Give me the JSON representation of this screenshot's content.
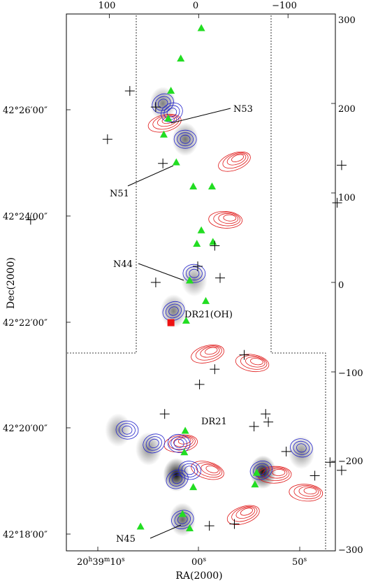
{
  "chart_data": {
    "type": "scatter",
    "title": "",
    "xlabel": "RA(2000)",
    "ylabel": "Dec(2000)",
    "x_ticks_bottom": [
      {
        "label_main": "20",
        "sup1": "h",
        "mid": "39",
        "sup2": "m",
        "tail": "10",
        "sup3": "s"
      },
      {
        "label_main": "00",
        "sup1": "s"
      },
      {
        "label_main": "50",
        "sup1": "s"
      }
    ],
    "y_ticks_left": [
      "42°26′00″",
      "42°24′00″",
      "42°22′00″",
      "42°20′00″",
      "42°18′00″"
    ],
    "x_ticks_top": [
      "100",
      "0",
      "−100"
    ],
    "y_ticks_right": [
      "300",
      "200",
      "100",
      "0",
      "−100",
      "−200",
      "−300"
    ],
    "offset_xlim": [
      148,
      -153
    ],
    "offset_ylim": [
      -300,
      300
    ],
    "source_labels": [
      {
        "label": "N53",
        "x": 0
      },
      {
        "label": "N51",
        "x": 0
      },
      {
        "label": "N44",
        "x": 0
      },
      {
        "label": "DR21(OH)",
        "x": 0
      },
      {
        "label": "DR21",
        "x": 0
      },
      {
        "label": "N45",
        "x": 0
      }
    ],
    "series": [
      {
        "name": "triangles",
        "marker": "triangle",
        "color": "#22dd22",
        "points": [
          {
            "x": -3,
            "y": 284
          },
          {
            "x": 20,
            "y": 250
          },
          {
            "x": 31,
            "y": 214
          },
          {
            "x": 34,
            "y": 183
          },
          {
            "x": 39,
            "y": 165
          },
          {
            "x": 25,
            "y": 134
          },
          {
            "x": 6,
            "y": 107
          },
          {
            "x": -15,
            "y": 107
          },
          {
            "x": -3,
            "y": 58
          },
          {
            "x": 2,
            "y": 43
          },
          {
            "x": -16,
            "y": 45
          },
          {
            "x": 10,
            "y": 2
          },
          {
            "x": -8,
            "y": -21
          },
          {
            "x": 14,
            "y": -43
          },
          {
            "x": 15,
            "y": -166
          },
          {
            "x": 16,
            "y": -190
          },
          {
            "x": 6,
            "y": -229
          },
          {
            "x": -65,
            "y": -213
          },
          {
            "x": -63,
            "y": -226
          },
          {
            "x": 18,
            "y": -259
          },
          {
            "x": 65,
            "y": -273
          },
          {
            "x": 10,
            "y": -275
          }
        ]
      },
      {
        "name": "crosses",
        "marker": "plus",
        "color": "#000000",
        "points": [
          {
            "x": 77,
            "y": 214
          },
          {
            "x": 48,
            "y": 196
          },
          {
            "x": 102,
            "y": 160
          },
          {
            "x": 40,
            "y": 133
          },
          {
            "x": -160,
            "y": 131
          },
          {
            "x": -155,
            "y": 89
          },
          {
            "x": 188,
            "y": 70
          },
          {
            "x": -18,
            "y": 41
          },
          {
            "x": 48,
            "y": 0
          },
          {
            "x": -24,
            "y": 5
          },
          {
            "x": 1,
            "y": 18
          },
          {
            "x": -51,
            "y": -81
          },
          {
            "x": -18,
            "y": -97
          },
          {
            "x": -1,
            "y": -114
          },
          {
            "x": 38,
            "y": -147
          },
          {
            "x": -75,
            "y": -147
          },
          {
            "x": -78,
            "y": -156
          },
          {
            "x": -62,
            "y": -161
          },
          {
            "x": -98,
            "y": -189
          },
          {
            "x": -147,
            "y": -201
          },
          {
            "x": -160,
            "y": -210
          },
          {
            "x": -130,
            "y": -216
          },
          {
            "x": -40,
            "y": -270
          },
          {
            "x": -12,
            "y": -272
          }
        ]
      },
      {
        "name": "square",
        "marker": "square",
        "color": "#ee1111",
        "points": [
          {
            "x": 31,
            "y": -45
          }
        ]
      }
    ],
    "contours_blue": [
      {
        "x": 40,
        "y": 200
      },
      {
        "x": 15,
        "y": 160
      },
      {
        "x": 30,
        "y": 190
      },
      {
        "x": 5,
        "y": 10
      },
      {
        "x": 28,
        "y": -32
      },
      {
        "x": 80,
        "y": -165
      },
      {
        "x": 50,
        "y": -180
      },
      {
        "x": 22,
        "y": -180
      },
      {
        "x": 24,
        "y": -220
      },
      {
        "x": 10,
        "y": -210
      },
      {
        "x": -70,
        "y": -210
      },
      {
        "x": -115,
        "y": -185
      },
      {
        "x": 18,
        "y": -265
      }
    ],
    "contours_red": [
      {
        "x": -40,
        "y": 135
      },
      {
        "x": -30,
        "y": 70
      },
      {
        "x": -10,
        "y": -80
      },
      {
        "x": -60,
        "y": -90
      },
      {
        "x": 20,
        "y": -180
      },
      {
        "x": -10,
        "y": -210
      },
      {
        "x": -85,
        "y": -215
      },
      {
        "x": -50,
        "y": -260
      },
      {
        "x": -120,
        "y": -235
      },
      {
        "x": 38,
        "y": 178
      }
    ],
    "grayscale_peaks": [
      {
        "x": 40,
        "y": 200,
        "level": 0.5
      },
      {
        "x": 15,
        "y": 160,
        "level": 0.55
      },
      {
        "x": 28,
        "y": -32,
        "level": 0.5
      },
      {
        "x": 5,
        "y": 3,
        "level": 0.4
      },
      {
        "x": 90,
        "y": -165,
        "level": 0.4
      },
      {
        "x": 56,
        "y": -186,
        "level": 0.45
      },
      {
        "x": 25,
        "y": -215,
        "level": 0.95
      },
      {
        "x": -72,
        "y": -212,
        "level": 0.95
      },
      {
        "x": -115,
        "y": -190,
        "level": 0.45
      },
      {
        "x": 18,
        "y": -265,
        "level": 0.6
      }
    ]
  }
}
